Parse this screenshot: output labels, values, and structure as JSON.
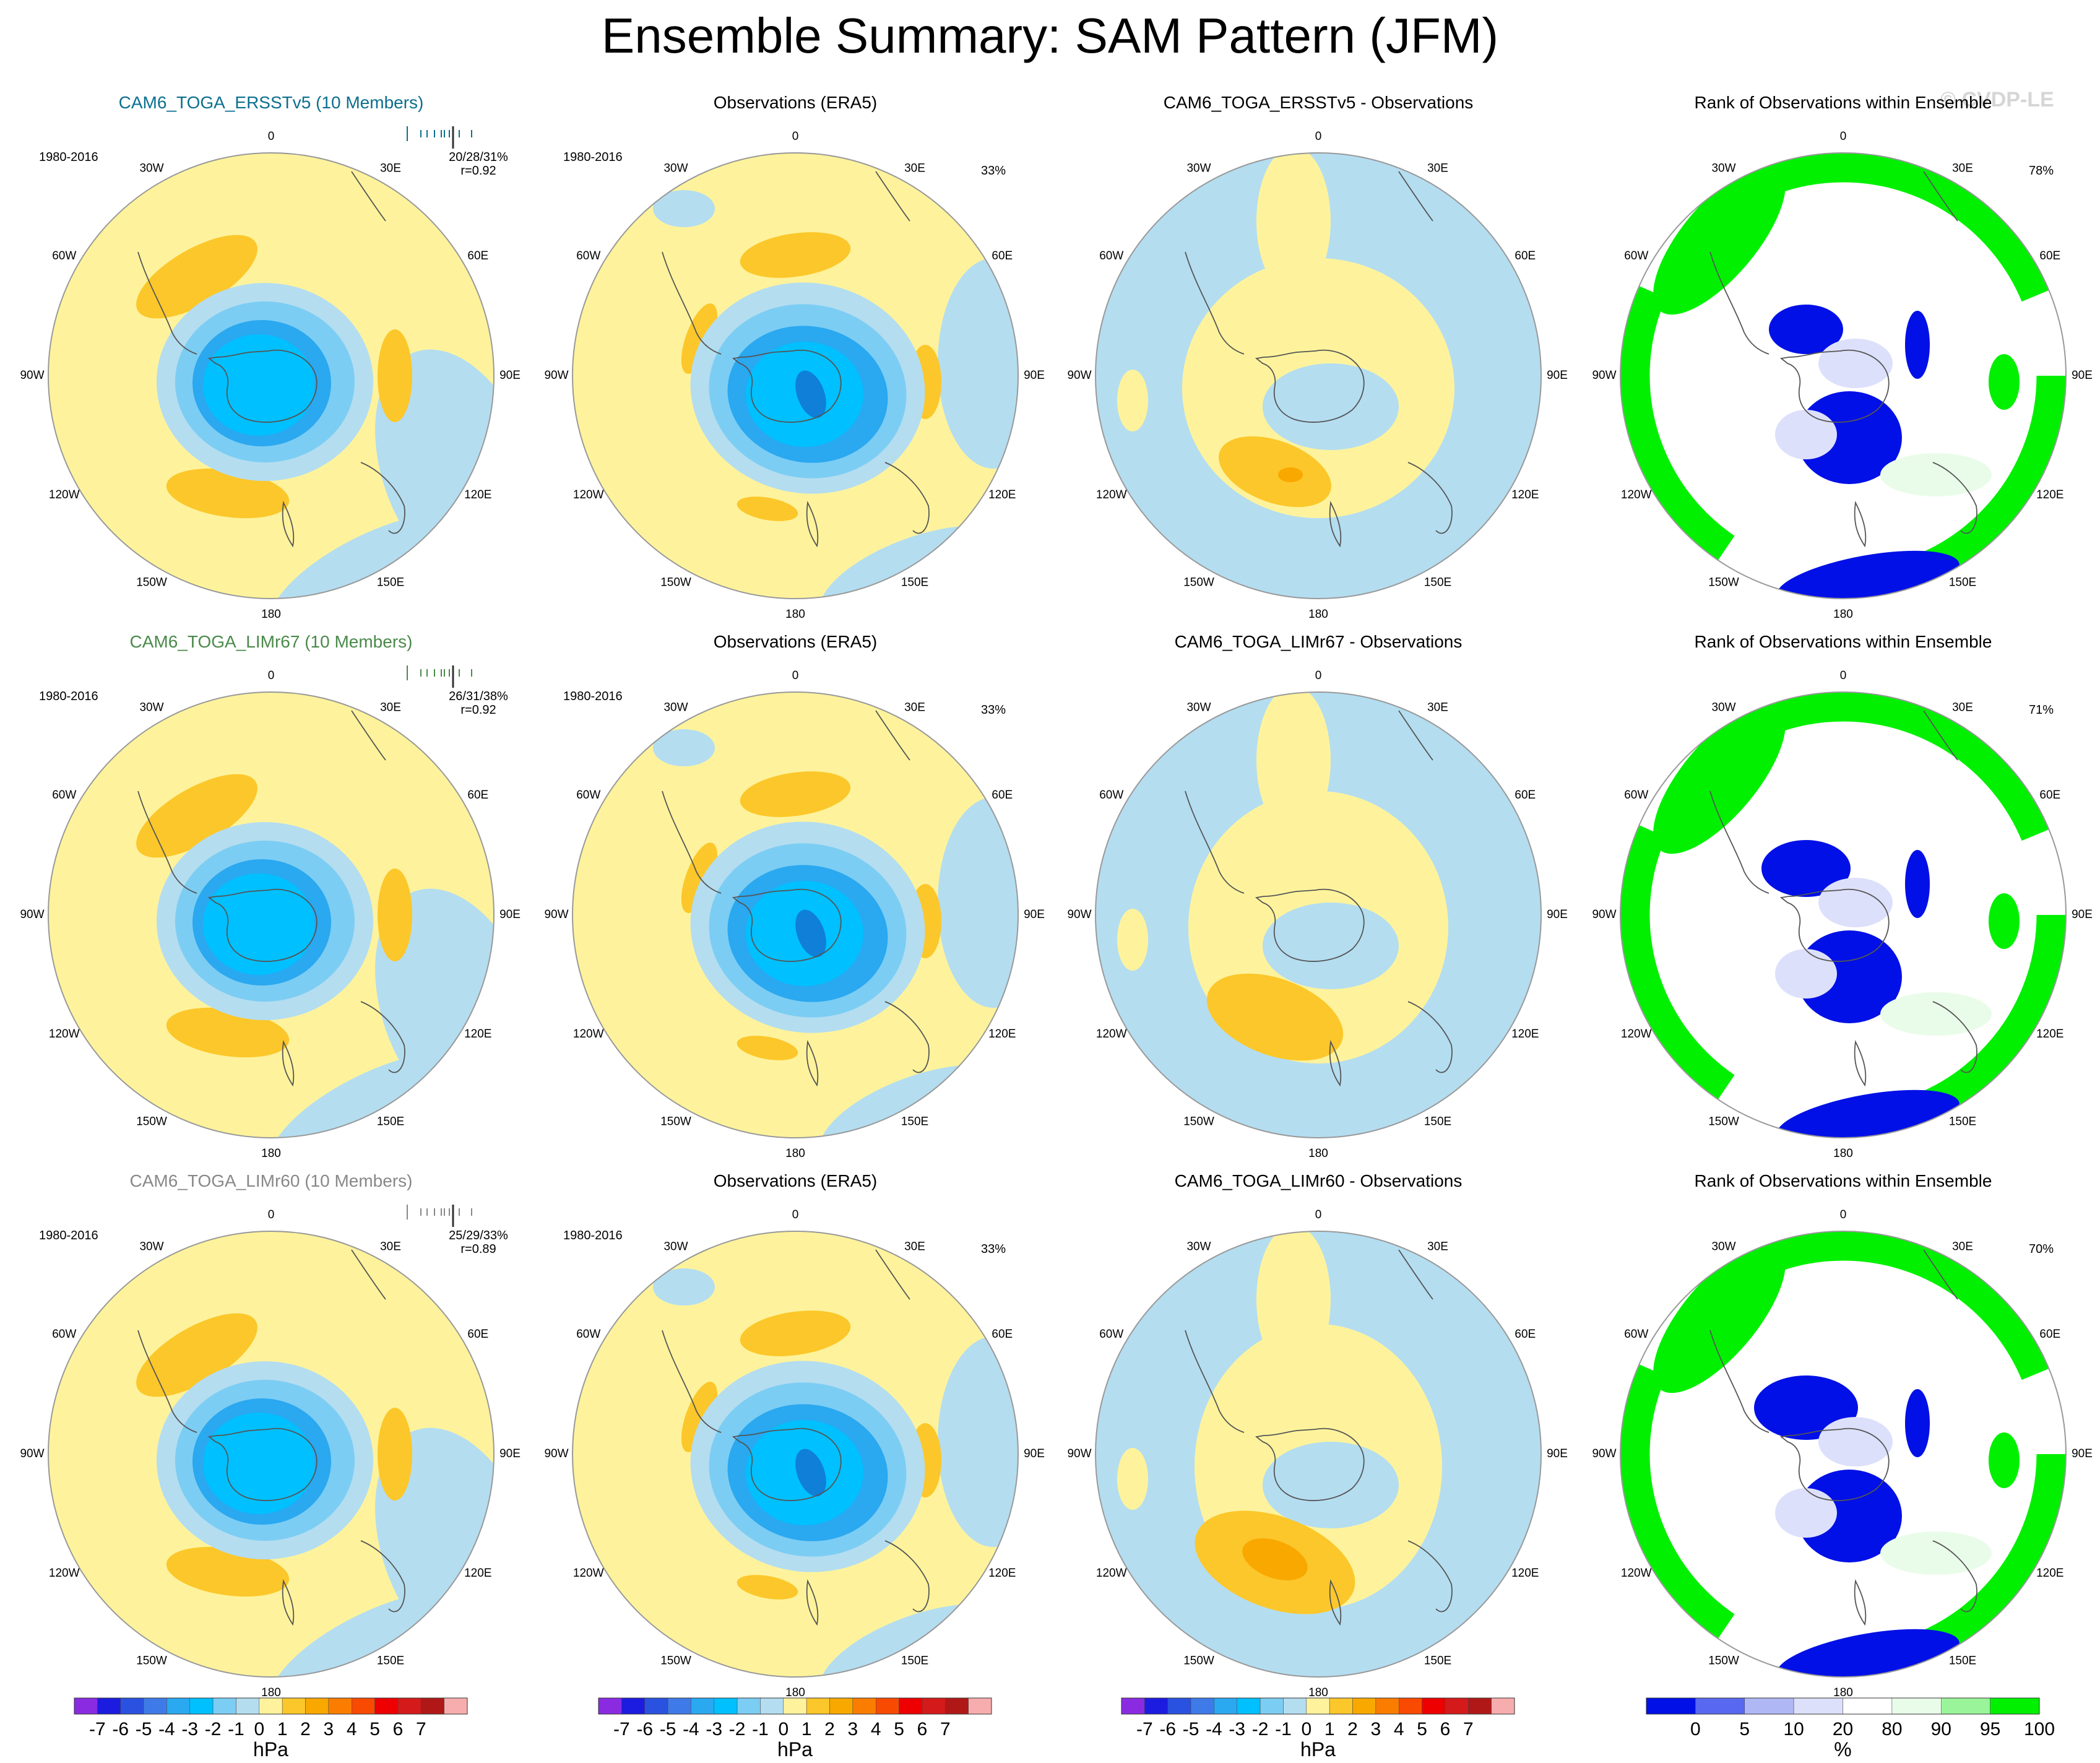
{
  "page": {
    "title": "Ensemble Summary: SAM Pattern (JFM)",
    "watermark": "© CVDP-LE"
  },
  "colors": {
    "neg4": "#0f7fd8",
    "neg3": "#2aa8f0",
    "neg2": "#00c0ff",
    "neg1": "#7ccdf3",
    "neg0": "#b4ddf0",
    "pos0": "#fef39c",
    "pos1": "#fde27a",
    "pos2": "#fcc72a",
    "pos3": "#f9a800",
    "rank_low": "#0010e6",
    "rank_lowish": "#dde0fb",
    "rank_highish": "#e9fce9",
    "rank_high": "#00f000",
    "coast": "#555555"
  },
  "lon_labels": [
    "0",
    "30E",
    "60E",
    "90E",
    "120E",
    "150E",
    "180",
    "150W",
    "120W",
    "90W",
    "60W",
    "30W"
  ],
  "rows": [
    {
      "model": {
        "title": "CAM6_TOGA_ERSSTv5 (10 Members)",
        "title_color": "#0c6f8f",
        "period": "1980-2016",
        "stats": "20/28/31%",
        "corr": "r=0.92"
      },
      "obs": {
        "title": "Observations (ERA5)",
        "period": "1980-2016",
        "pct": "33%"
      },
      "diff": {
        "title": "CAM6_TOGA_ERSSTv5 - Observations"
      },
      "rank": {
        "title": "Rank of Observations within Ensemble",
        "pct": "78%"
      }
    },
    {
      "model": {
        "title": "CAM6_TOGA_LIMr67 (10 Members)",
        "title_color": "#4a8a4a",
        "period": "1980-2016",
        "stats": "26/31/38%",
        "corr": "r=0.92"
      },
      "obs": {
        "title": "Observations (ERA5)",
        "period": "1980-2016",
        "pct": "33%"
      },
      "diff": {
        "title": "CAM6_TOGA_LIMr67 - Observations"
      },
      "rank": {
        "title": "Rank of Observations within Ensemble",
        "pct": "71%"
      }
    },
    {
      "model": {
        "title": "CAM6_TOGA_LIMr60 (10 Members)",
        "title_color": "#888888",
        "period": "1980-2016",
        "stats": "25/29/33%",
        "corr": "r=0.89"
      },
      "obs": {
        "title": "Observations (ERA5)",
        "period": "1980-2016",
        "pct": "33%"
      },
      "diff": {
        "title": "CAM6_TOGA_LIMr60 - Observations"
      },
      "rank": {
        "title": "Rank of Observations within Ensemble",
        "pct": "70%"
      }
    }
  ],
  "colorbars": [
    {
      "unit": "hPa",
      "ticks": [
        "-7",
        "-6",
        "-5",
        "-4",
        "-3",
        "-2",
        "-1",
        "0",
        "1",
        "2",
        "3",
        "4",
        "5",
        "6",
        "7"
      ],
      "colors": [
        "#8a2be2",
        "#1c1ce0",
        "#2a52e0",
        "#3f7be8",
        "#2aa8f0",
        "#00c0ff",
        "#7ccdf3",
        "#b4ddf0",
        "#fef39c",
        "#fcc72a",
        "#f9a800",
        "#fb7d00",
        "#f84a00",
        "#ee0000",
        "#d41a1a",
        "#b01818",
        "#f7adad"
      ]
    },
    {
      "unit": "hPa",
      "ticks": [
        "-7",
        "-6",
        "-5",
        "-4",
        "-3",
        "-2",
        "-1",
        "0",
        "1",
        "2",
        "3",
        "4",
        "5",
        "6",
        "7"
      ],
      "colors": [
        "#8a2be2",
        "#1c1ce0",
        "#2a52e0",
        "#3f7be8",
        "#2aa8f0",
        "#00c0ff",
        "#7ccdf3",
        "#b4ddf0",
        "#fef39c",
        "#fcc72a",
        "#f9a800",
        "#fb7d00",
        "#f84a00",
        "#ee0000",
        "#d41a1a",
        "#b01818",
        "#f7adad"
      ]
    },
    {
      "unit": "hPa",
      "ticks": [
        "-7",
        "-6",
        "-5",
        "-4",
        "-3",
        "-2",
        "-1",
        "0",
        "1",
        "2",
        "3",
        "4",
        "5",
        "6",
        "7"
      ],
      "colors": [
        "#8a2be2",
        "#1c1ce0",
        "#2a52e0",
        "#3f7be8",
        "#2aa8f0",
        "#00c0ff",
        "#7ccdf3",
        "#b4ddf0",
        "#fef39c",
        "#fcc72a",
        "#f9a800",
        "#fb7d00",
        "#f84a00",
        "#ee0000",
        "#d41a1a",
        "#b01818",
        "#f7adad"
      ]
    },
    {
      "unit": "%",
      "ticks": [
        "0",
        "5",
        "10",
        "20",
        "80",
        "90",
        "95",
        "100"
      ],
      "colors": [
        "#0010e6",
        "#5868f0",
        "#b0b7f5",
        "#dde0fb",
        "#ffffff",
        "#e9fce9",
        "#9af59a",
        "#00f000"
      ]
    }
  ]
}
